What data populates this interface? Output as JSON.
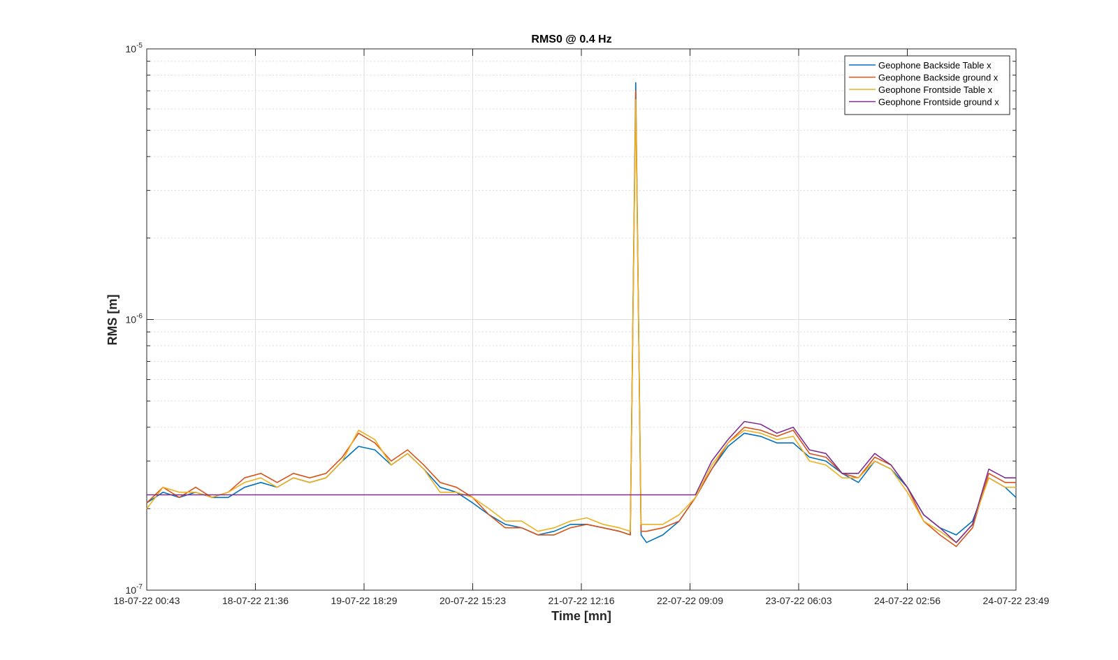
{
  "chart_data": {
    "type": "line",
    "title": "RMS0 @ 0.4 Hz",
    "xlabel": "Time [mn]",
    "ylabel": "RMS [m]",
    "yscale": "log",
    "ylim": [
      1e-07,
      1e-05
    ],
    "yticks": [
      {
        "base": "10",
        "exp": "-7",
        "value": 1e-07
      },
      {
        "base": "10",
        "exp": "-6",
        "value": 1e-06
      },
      {
        "base": "10",
        "exp": "-5",
        "value": 1e-05
      }
    ],
    "xticks": [
      "18-07-22 00:43",
      "18-07-22 21:36",
      "19-07-22 18:29",
      "20-07-22 15:23",
      "21-07-22 12:16",
      "22-07-22 09:09",
      "23-07-22 06:03",
      "24-07-22 02:56",
      "24-07-22 23:49"
    ],
    "xlim": [
      0,
      8
    ],
    "grid": true,
    "legend_position": "top-right",
    "series": [
      {
        "name": "Geophone Backside Table x",
        "color": "#0072BD",
        "x": [
          0,
          0.15,
          0.3,
          0.45,
          0.6,
          0.75,
          0.9,
          1.05,
          1.2,
          1.35,
          1.5,
          1.65,
          1.8,
          1.95,
          2.1,
          2.25,
          2.4,
          2.55,
          2.7,
          2.85,
          3.0,
          3.15,
          3.3,
          3.45,
          3.6,
          3.75,
          3.9,
          4.05,
          4.2,
          4.35,
          4.45,
          4.5,
          4.55,
          4.6,
          4.75,
          4.9,
          5.05,
          5.2,
          5.35,
          5.5,
          5.65,
          5.8,
          5.95,
          6.1,
          6.25,
          6.4,
          6.55,
          6.7,
          6.85,
          7.0,
          7.15,
          7.3,
          7.45,
          7.6,
          7.75,
          7.9,
          8.0
        ],
        "y": [
          2.1e-07,
          2.3e-07,
          2.2e-07,
          2.3e-07,
          2.2e-07,
          2.2e-07,
          2.4e-07,
          2.5e-07,
          2.4e-07,
          2.6e-07,
          2.5e-07,
          2.6e-07,
          3e-07,
          3.4e-07,
          3.3e-07,
          2.9e-07,
          3.2e-07,
          2.8e-07,
          2.4e-07,
          2.3e-07,
          2.1e-07,
          1.9e-07,
          1.75e-07,
          1.7e-07,
          1.6e-07,
          1.65e-07,
          1.75e-07,
          1.75e-07,
          1.7e-07,
          1.65e-07,
          1.6e-07,
          7.5e-06,
          1.6e-07,
          1.5e-07,
          1.6e-07,
          1.8e-07,
          2.2e-07,
          2.8e-07,
          3.4e-07,
          3.8e-07,
          3.7e-07,
          3.5e-07,
          3.5e-07,
          3.1e-07,
          3e-07,
          2.7e-07,
          2.5e-07,
          3e-07,
          2.8e-07,
          2.4e-07,
          1.9e-07,
          1.7e-07,
          1.6e-07,
          1.8e-07,
          2.6e-07,
          2.4e-07,
          2.2e-07
        ]
      },
      {
        "name": "Geophone Backside ground x",
        "color": "#D95319",
        "x": [
          0,
          0.15,
          0.3,
          0.45,
          0.6,
          0.75,
          0.9,
          1.05,
          1.2,
          1.35,
          1.5,
          1.65,
          1.8,
          1.95,
          2.1,
          2.25,
          2.4,
          2.55,
          2.7,
          2.85,
          3.0,
          3.15,
          3.3,
          3.45,
          3.6,
          3.75,
          3.9,
          4.05,
          4.2,
          4.35,
          4.45,
          4.5,
          4.55,
          4.6,
          4.75,
          4.9,
          5.05,
          5.2,
          5.35,
          5.5,
          5.65,
          5.8,
          5.95,
          6.1,
          6.25,
          6.4,
          6.55,
          6.7,
          6.85,
          7.0,
          7.15,
          7.3,
          7.45,
          7.6,
          7.75,
          7.9,
          8.0
        ],
        "y": [
          2.1e-07,
          2.4e-07,
          2.2e-07,
          2.4e-07,
          2.2e-07,
          2.3e-07,
          2.6e-07,
          2.7e-07,
          2.5e-07,
          2.7e-07,
          2.6e-07,
          2.7e-07,
          3.1e-07,
          3.8e-07,
          3.5e-07,
          3e-07,
          3.3e-07,
          2.9e-07,
          2.5e-07,
          2.4e-07,
          2.2e-07,
          1.9e-07,
          1.7e-07,
          1.7e-07,
          1.6e-07,
          1.6e-07,
          1.7e-07,
          1.75e-07,
          1.7e-07,
          1.65e-07,
          1.6e-07,
          7e-06,
          1.65e-07,
          1.65e-07,
          1.7e-07,
          1.8e-07,
          2.2e-07,
          2.8e-07,
          3.5e-07,
          4e-07,
          3.9e-07,
          3.7e-07,
          3.9e-07,
          3.2e-07,
          3.1e-07,
          2.7e-07,
          2.6e-07,
          3.1e-07,
          2.9e-07,
          2.4e-07,
          1.8e-07,
          1.6e-07,
          1.45e-07,
          1.7e-07,
          2.7e-07,
          2.5e-07,
          2.5e-07
        ]
      },
      {
        "name": "Geophone Frontside Table x",
        "color": "#EDB120",
        "x": [
          0,
          0.15,
          0.3,
          0.45,
          0.6,
          0.75,
          0.9,
          1.05,
          1.2,
          1.35,
          1.5,
          1.65,
          1.8,
          1.95,
          2.1,
          2.25,
          2.4,
          2.55,
          2.7,
          2.85,
          3.0,
          3.15,
          3.3,
          3.45,
          3.6,
          3.75,
          3.9,
          4.05,
          4.2,
          4.35,
          4.45,
          4.5,
          4.55,
          4.6,
          4.75,
          4.9,
          5.05,
          5.2,
          5.35,
          5.5,
          5.65,
          5.8,
          5.95,
          6.1,
          6.25,
          6.4,
          6.55,
          6.7,
          6.85,
          7.0,
          7.15,
          7.3,
          7.45,
          7.6,
          7.75,
          7.9,
          8.0
        ],
        "y": [
          2e-07,
          2.4e-07,
          2.3e-07,
          2.3e-07,
          2.2e-07,
          2.3e-07,
          2.5e-07,
          2.6e-07,
          2.4e-07,
          2.6e-07,
          2.5e-07,
          2.6e-07,
          3e-07,
          3.9e-07,
          3.6e-07,
          2.9e-07,
          3.2e-07,
          2.8e-07,
          2.3e-07,
          2.3e-07,
          2.2e-07,
          2e-07,
          1.8e-07,
          1.8e-07,
          1.65e-07,
          1.7e-07,
          1.8e-07,
          1.85e-07,
          1.75e-07,
          1.7e-07,
          1.65e-07,
          6.5e-06,
          1.75e-07,
          1.75e-07,
          1.75e-07,
          1.9e-07,
          2.2e-07,
          2.9e-07,
          3.5e-07,
          3.9e-07,
          3.8e-07,
          3.6e-07,
          3.7e-07,
          3e-07,
          2.9e-07,
          2.6e-07,
          2.6e-07,
          3e-07,
          2.8e-07,
          2.3e-07,
          1.8e-07,
          1.65e-07,
          1.5e-07,
          1.75e-07,
          2.6e-07,
          2.4e-07,
          2.4e-07
        ]
      },
      {
        "name": "Geophone Frontside ground x",
        "color": "#7E2F8E",
        "x": [
          0,
          2.5,
          5.0,
          5.05,
          5.2,
          5.35,
          5.5,
          5.65,
          5.8,
          5.95,
          6.1,
          6.25,
          6.4,
          6.55,
          6.7,
          6.85,
          7.0,
          7.15,
          7.3,
          7.45,
          7.6,
          7.75,
          7.9,
          8.0
        ],
        "y": [
          2.25e-07,
          2.25e-07,
          2.25e-07,
          2.25e-07,
          3e-07,
          3.6e-07,
          4.2e-07,
          4.1e-07,
          3.8e-07,
          4e-07,
          3.3e-07,
          3.2e-07,
          2.7e-07,
          2.7e-07,
          3.2e-07,
          2.9e-07,
          2.4e-07,
          1.9e-07,
          1.7e-07,
          1.5e-07,
          1.75e-07,
          2.8e-07,
          2.6e-07,
          2.6e-07
        ]
      }
    ]
  }
}
